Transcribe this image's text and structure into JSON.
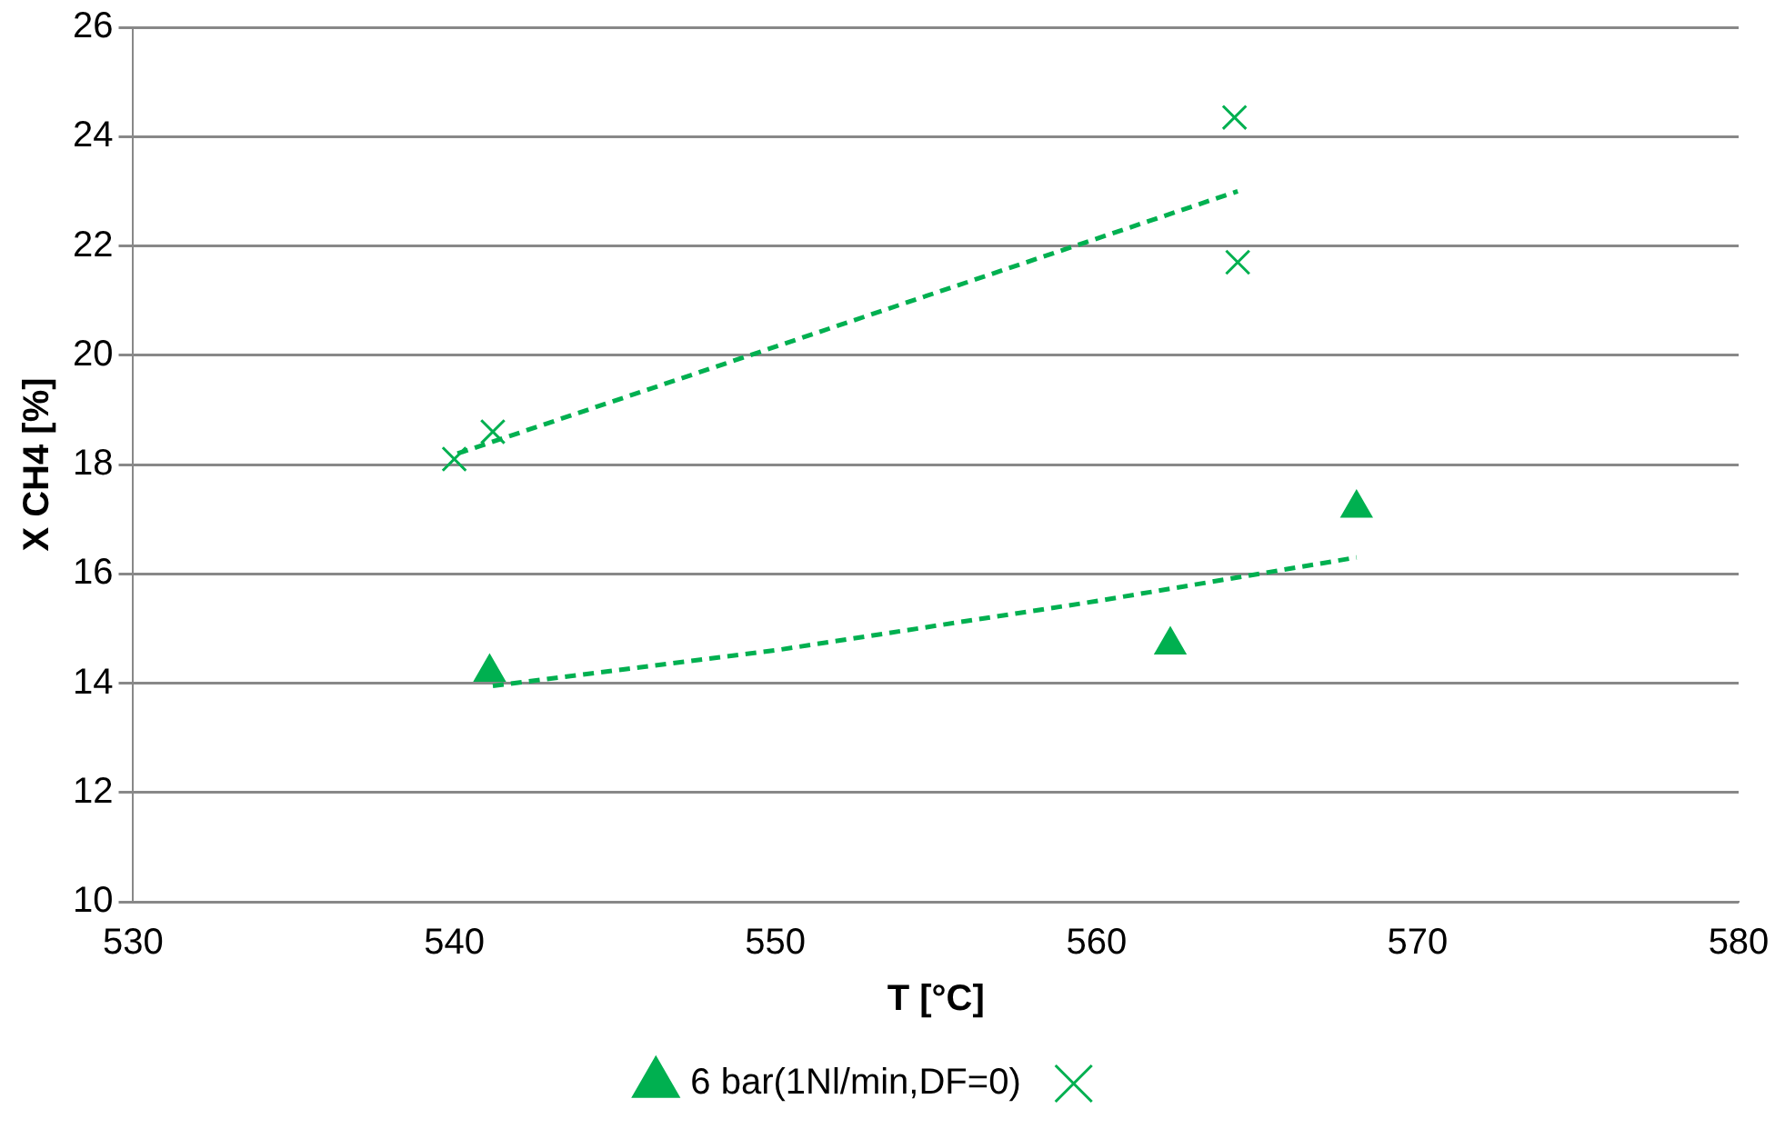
{
  "chart_data": {
    "type": "scatter",
    "xlabel": "T [°C]",
    "ylabel": "X CH4 [%]",
    "xlim": [
      530,
      580
    ],
    "xticks": [
      530,
      540,
      550,
      560,
      570,
      580
    ],
    "ylim": [
      10,
      26
    ],
    "yticks": [
      10,
      12,
      14,
      16,
      18,
      20,
      22,
      24,
      26
    ],
    "grid": "y",
    "legend": "bottom",
    "series": [
      {
        "name": "6 bar(1Nl/min,DF=0)",
        "color": "#00b050",
        "marker": "triangle",
        "x": [
          541.1,
          562.3,
          568.1
        ],
        "values": [
          14.2,
          14.7,
          17.2
        ]
      },
      {
        "color": "#00b050",
        "marker": "cross",
        "x": [
          540.0,
          541.2,
          564.3,
          564.4
        ],
        "values": [
          18.1,
          18.6,
          24.35,
          21.7
        ]
      },
      {
        "type": "line",
        "color": "#00b050",
        "marker": "none",
        "line_style": "dashed",
        "x": [
          541.2,
          550,
          560,
          568.1
        ],
        "values": [
          13.95,
          14.6,
          15.5,
          16.3
        ]
      },
      {
        "type": "line",
        "color": "#00b050",
        "marker": "none",
        "line_style": "dashed",
        "x": [
          540.1,
          564.4
        ],
        "values": [
          18.2,
          23.0
        ]
      }
    ]
  }
}
